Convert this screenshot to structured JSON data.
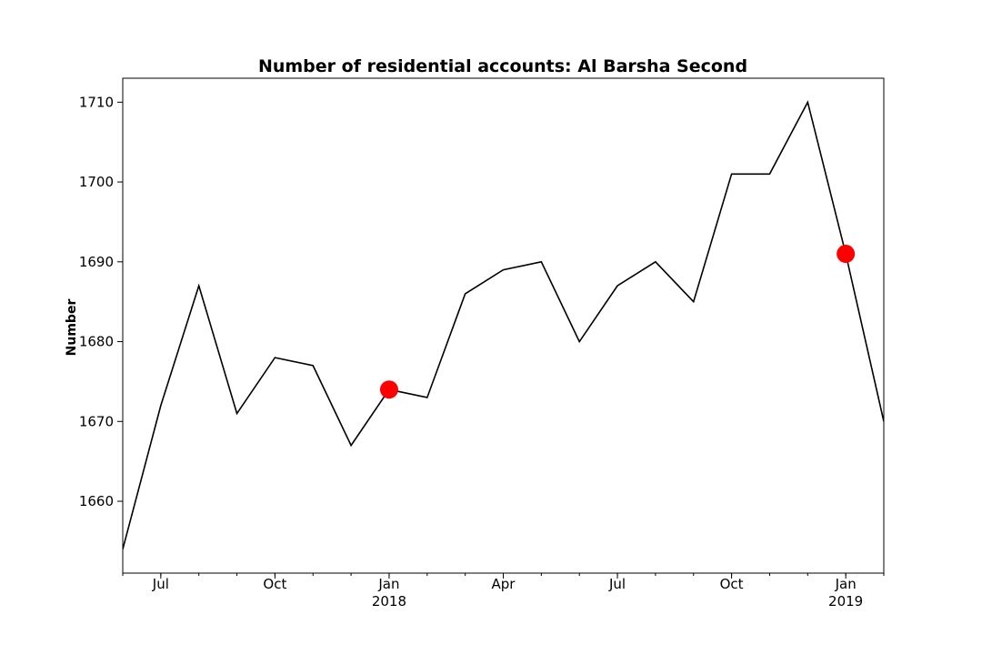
{
  "chart_data": {
    "type": "line",
    "title": "Number of residential accounts: Al Barsha Second",
    "xlabel": "",
    "ylabel": "Number",
    "x": [
      "2017-06",
      "2017-07",
      "2017-08",
      "2017-09",
      "2017-10",
      "2017-11",
      "2017-12",
      "2018-01",
      "2018-02",
      "2018-03",
      "2018-04",
      "2018-05",
      "2018-06",
      "2018-07",
      "2018-08",
      "2018-09",
      "2018-10",
      "2018-11",
      "2018-12",
      "2019-01",
      "2019-02"
    ],
    "series": [
      {
        "values": [
          1654,
          1672,
          1687,
          1671,
          1678,
          1677,
          1667,
          1674,
          1673,
          1686,
          1689,
          1690,
          1680,
          1687,
          1690,
          1685,
          1701,
          1701,
          1710,
          1691,
          1670
        ]
      }
    ],
    "highlights": [
      {
        "x": "2018-01",
        "y": 1674
      },
      {
        "x": "2019-01",
        "y": 1691
      }
    ],
    "line_color": "#000000",
    "highlight_color": "#ff0000",
    "xlim": [
      "2017-06",
      "2019-02"
    ],
    "ylim": [
      1651,
      1713
    ],
    "yticks": [
      1660,
      1670,
      1680,
      1690,
      1700,
      1710
    ],
    "xticks": [
      {
        "x": "2017-07",
        "label": "Jul",
        "sublabel": ""
      },
      {
        "x": "2017-10",
        "label": "Oct",
        "sublabel": ""
      },
      {
        "x": "2018-01",
        "label": "Jan",
        "sublabel": "2018"
      },
      {
        "x": "2018-04",
        "label": "Apr",
        "sublabel": ""
      },
      {
        "x": "2018-07",
        "label": "Jul",
        "sublabel": ""
      },
      {
        "x": "2018-10",
        "label": "Oct",
        "sublabel": ""
      },
      {
        "x": "2019-01",
        "label": "Jan",
        "sublabel": "2019"
      }
    ],
    "grid": false,
    "legend": "none"
  }
}
